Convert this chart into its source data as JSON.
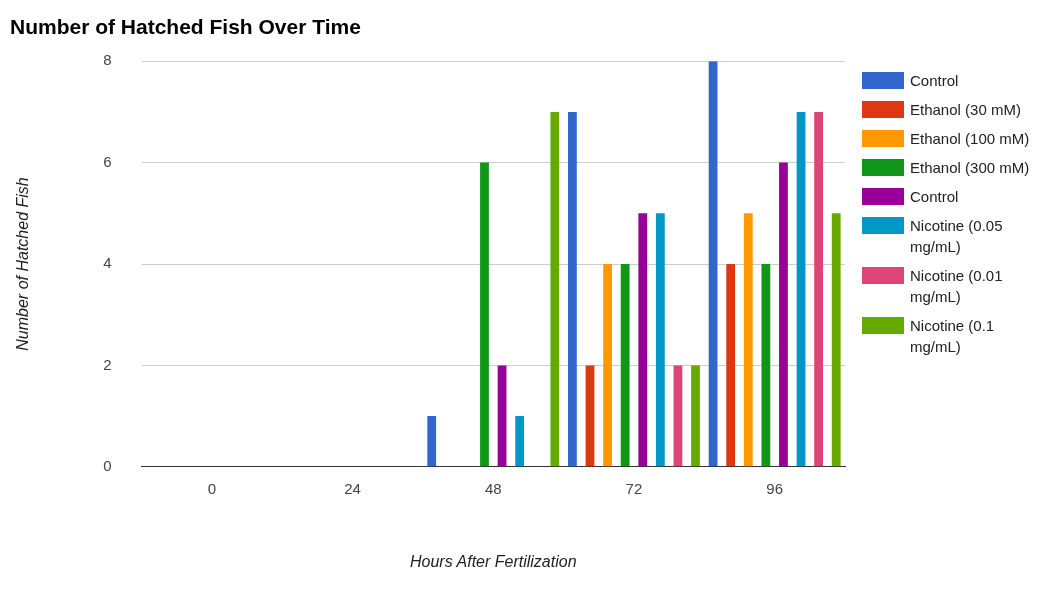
{
  "chart_data": {
    "type": "bar",
    "title": "Number of Hatched Fish Over Time",
    "xlabel": "Hours After Fertilization",
    "ylabel": "Number of Hatched Fish",
    "categories": [
      "0",
      "24",
      "48",
      "72",
      "96"
    ],
    "series": [
      {
        "name": "Control",
        "color": "#3366cc",
        "values": [
          0,
          0,
          1,
          7,
          8
        ]
      },
      {
        "name": "Ethanol (30 mM)",
        "color": "#dc3912",
        "values": [
          0,
          0,
          0,
          2,
          4
        ]
      },
      {
        "name": "Ethanol (100 mM)",
        "color": "#ff9900",
        "values": [
          0,
          0,
          0,
          4,
          5
        ]
      },
      {
        "name": "Ethanol (300 mM)",
        "color": "#109618",
        "values": [
          0,
          0,
          6,
          4,
          4
        ]
      },
      {
        "name": "Control",
        "color": "#990099",
        "values": [
          0,
          0,
          2,
          5,
          6
        ]
      },
      {
        "name": "Nicotine (0.05 mg/mL)",
        "color": "#0099c6",
        "values": [
          0,
          0,
          1,
          5,
          7
        ]
      },
      {
        "name": "Nicotine (0.01 mg/mL)",
        "color": "#dd4477",
        "values": [
          0,
          0,
          0,
          2,
          7
        ]
      },
      {
        "name": "Nicotine (0.1 mg/mL)",
        "color": "#66aa00",
        "values": [
          0,
          0,
          7,
          2,
          5
        ]
      }
    ],
    "ylim": [
      0,
      8
    ],
    "yticks": [
      0,
      2,
      4,
      6,
      8
    ],
    "grid": "y",
    "legend": "right"
  }
}
